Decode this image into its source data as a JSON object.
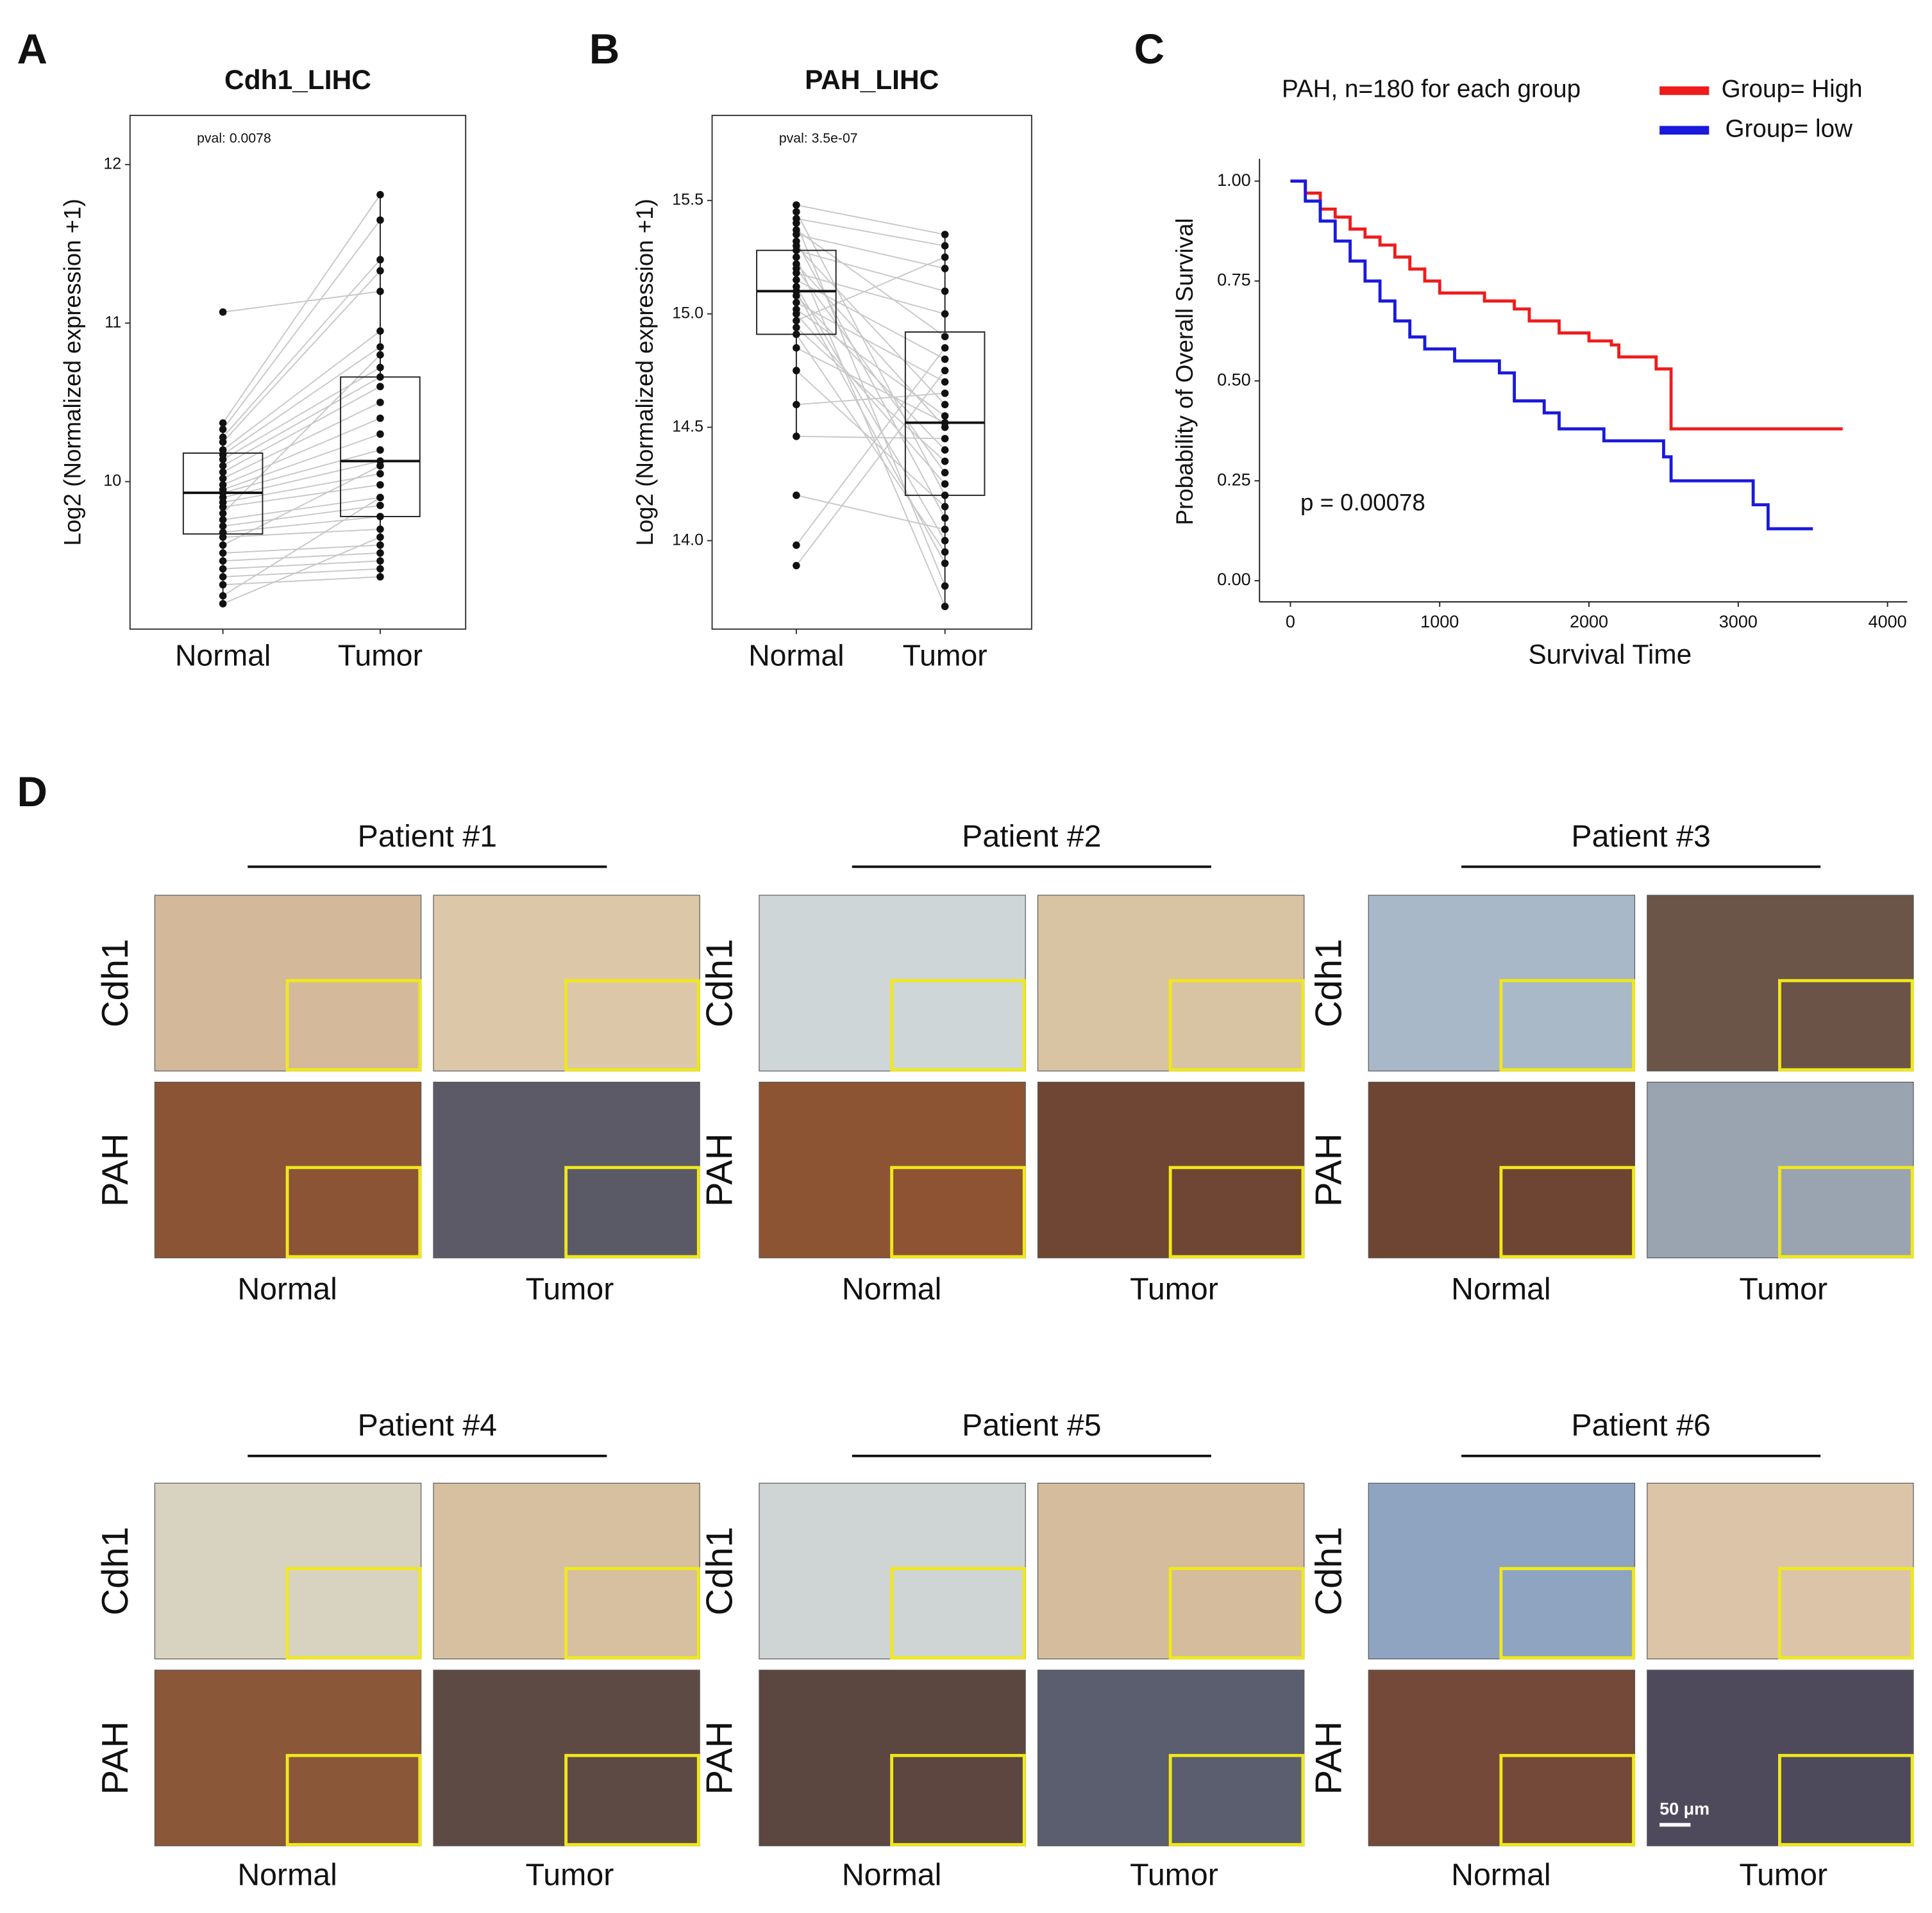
{
  "chart_data": [
    {
      "type": "box",
      "panel_label": "A",
      "title": "Cdh1_LIHC",
      "annotation": "pval: 0.0078",
      "ylabel": "Log2 (Normalized expression +1)",
      "categories": [
        "Normal",
        "Tumor"
      ],
      "ylim": [
        9.07,
        12.31
      ],
      "yticks": [
        10,
        11,
        12
      ],
      "boxes": [
        {
          "whisker_low": 9.23,
          "q1": 9.67,
          "median": 9.93,
          "q3": 10.18,
          "whisker_high": 10.37
        },
        {
          "whisker_low": 9.4,
          "q1": 9.78,
          "median": 10.13,
          "q3": 10.66,
          "whisker_high": 11.81
        }
      ],
      "points": [
        [
          11.07,
          10.37,
          10.33,
          10.28,
          10.25,
          10.2,
          10.17,
          10.14,
          10.1,
          10.06,
          10.02,
          9.98,
          9.95,
          9.93,
          9.9,
          9.87,
          9.84,
          9.8,
          9.76,
          9.72,
          9.68,
          9.65,
          9.6,
          9.55,
          9.5,
          9.45,
          9.4,
          9.35,
          9.28,
          9.23
        ],
        [
          11.2,
          11.81,
          11.65,
          11.4,
          11.33,
          10.95,
          10.85,
          10.72,
          10.66,
          10.6,
          10.5,
          10.4,
          10.3,
          10.2,
          10.13,
          10.05,
          9.98,
          10.8,
          9.9,
          9.85,
          9.78,
          9.7,
          10.1,
          9.6,
          9.55,
          9.5,
          9.45,
          9.4,
          9.9,
          9.65
        ]
      ]
    },
    {
      "type": "box",
      "panel_label": "B",
      "title": "PAH_LIHC",
      "annotation": "pval: 3.5e-07",
      "ylabel": "Log2 (Normalized expression +1)",
      "categories": [
        "Normal",
        "Tumor"
      ],
      "ylim": [
        13.61,
        15.875
      ],
      "yticks": [
        {
          "value": 14,
          "label": "14.0"
        },
        14.5,
        {
          "value": 15,
          "label": "15.0"
        },
        15.5
      ],
      "boxes": [
        {
          "whisker_low": 14.46,
          "q1": 14.91,
          "median": 15.1,
          "q3": 15.28,
          "whisker_high": 15.48
        },
        {
          "whisker_low": 13.71,
          "q1": 14.2,
          "median": 14.52,
          "q3": 14.92,
          "whisker_high": 15.35
        }
      ],
      "points": [
        [
          15.48,
          15.45,
          15.42,
          15.4,
          15.37,
          15.35,
          15.32,
          15.3,
          15.28,
          15.25,
          15.22,
          15.2,
          15.18,
          15.15,
          15.12,
          15.1,
          15.08,
          15.05,
          15.02,
          15.0,
          14.97,
          14.94,
          14.91,
          14.85,
          14.75,
          14.6,
          14.46,
          14.2,
          13.98,
          13.89
        ],
        [
          15.35,
          14.2,
          15.3,
          13.8,
          14.9,
          15.2,
          14.1,
          14.6,
          15.1,
          13.71,
          14.5,
          14.3,
          15.0,
          14.8,
          14.0,
          13.9,
          14.4,
          14.7,
          14.55,
          14.25,
          15.25,
          14.35,
          13.95,
          14.52,
          14.15,
          14.65,
          14.45,
          14.05,
          14.85,
          14.75
        ]
      ]
    },
    {
      "type": "line",
      "panel_label": "C",
      "title": "PAH, n=180 for each group",
      "annotation": "p = 0.00078",
      "xlabel": "Survival Time",
      "ylabel": "Probability of Overall Survival",
      "xlim": [
        -207,
        4132
      ],
      "xticks": [
        0,
        1000,
        2000,
        3000,
        4000
      ],
      "ylim": [
        -0.053,
        1.056
      ],
      "yticks": [
        {
          "value": 0,
          "label": "0.00"
        },
        {
          "value": 0.25,
          "label": "0.25"
        },
        {
          "value": 0.5,
          "label": "0.50"
        },
        {
          "value": 0.75,
          "label": "0.75"
        },
        {
          "value": 1,
          "label": "1.00"
        }
      ],
      "step": true,
      "legend": "top-right",
      "series": [
        {
          "name": "Group= High",
          "color": "#ee1c1c",
          "x": [
            0,
            100,
            200,
            300,
            400,
            500,
            600,
            700,
            800,
            900,
            1000,
            1300,
            1500,
            1600,
            1800,
            2000,
            2150,
            2200,
            2450,
            2550,
            3700
          ],
          "values": [
            1.0,
            0.97,
            0.93,
            0.91,
            0.88,
            0.86,
            0.84,
            0.81,
            0.78,
            0.75,
            0.72,
            0.7,
            0.68,
            0.65,
            0.62,
            0.6,
            0.59,
            0.56,
            0.53,
            0.38,
            0.38
          ]
        },
        {
          "name": "Group= low",
          "color": "#1a1adc",
          "x": [
            0,
            100,
            200,
            300,
            400,
            500,
            600,
            700,
            800,
            900,
            1100,
            1400,
            1500,
            1700,
            1800,
            2100,
            2500,
            2550,
            3100,
            3200,
            3500
          ],
          "values": [
            1.0,
            0.95,
            0.9,
            0.85,
            0.8,
            0.75,
            0.7,
            0.65,
            0.61,
            0.58,
            0.55,
            0.52,
            0.45,
            0.42,
            0.38,
            0.35,
            0.31,
            0.25,
            0.19,
            0.13,
            0.13
          ]
        }
      ]
    }
  ],
  "panel_d": {
    "label": "D",
    "patients": [
      "Patient #1",
      "Patient #2",
      "Patient #3",
      "Patient #4",
      "Patient #5",
      "Patient #6"
    ],
    "rows": [
      "Cdh1",
      "PAH"
    ],
    "columns": [
      "Normal",
      "Tumor"
    ],
    "scale_bar": "50 μm"
  }
}
